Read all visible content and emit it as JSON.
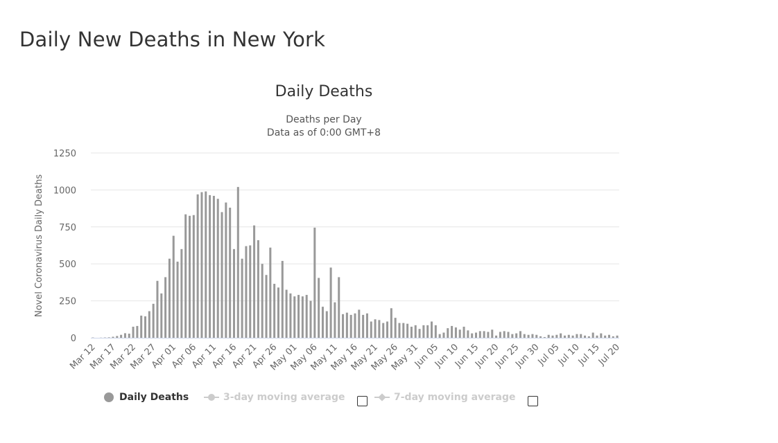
{
  "page": {
    "title": "Daily New Deaths in New York"
  },
  "chart_data": {
    "type": "bar",
    "title": "Daily Deaths",
    "subtitle_lines": [
      "Deaths per Day",
      "Data as of 0:00 GMT+8"
    ],
    "ylabel": "Novel Coronavirus Daily Deaths",
    "xlabel": "",
    "ylim": [
      0,
      1250
    ],
    "yticks": [
      0,
      250,
      500,
      750,
      1000,
      1250
    ],
    "grid": true,
    "legend_position": "bottom-left",
    "colors": {
      "bar": "#999999",
      "grid": "#e6e6e6",
      "axis": "#ccd6eb",
      "tick_text": "#666666",
      "legend_inactive": "#cccccc"
    },
    "categories": [
      "Mar 12",
      "Mar 13",
      "Mar 14",
      "Mar 15",
      "Mar 16",
      "Mar 17",
      "Mar 18",
      "Mar 19",
      "Mar 20",
      "Mar 21",
      "Mar 22",
      "Mar 23",
      "Mar 24",
      "Mar 25",
      "Mar 26",
      "Mar 27",
      "Mar 28",
      "Mar 29",
      "Mar 30",
      "Mar 31",
      "Apr 01",
      "Apr 02",
      "Apr 03",
      "Apr 04",
      "Apr 05",
      "Apr 06",
      "Apr 07",
      "Apr 08",
      "Apr 09",
      "Apr 10",
      "Apr 11",
      "Apr 12",
      "Apr 13",
      "Apr 14",
      "Apr 15",
      "Apr 16",
      "Apr 17",
      "Apr 18",
      "Apr 19",
      "Apr 20",
      "Apr 21",
      "Apr 22",
      "Apr 23",
      "Apr 24",
      "Apr 25",
      "Apr 26",
      "Apr 27",
      "Apr 28",
      "Apr 29",
      "Apr 30",
      "May 01",
      "May 02",
      "May 03",
      "May 04",
      "May 05",
      "May 06",
      "May 07",
      "May 08",
      "May 09",
      "May 10",
      "May 11",
      "May 12",
      "May 13",
      "May 14",
      "May 15",
      "May 16",
      "May 17",
      "May 18",
      "May 19",
      "May 20",
      "May 21",
      "May 22",
      "May 23",
      "May 24",
      "May 25",
      "May 26",
      "May 27",
      "May 28",
      "May 29",
      "May 30",
      "May 31",
      "Jun 01",
      "Jun 02",
      "Jun 03",
      "Jun 04",
      "Jun 05",
      "Jun 06",
      "Jun 07",
      "Jun 08",
      "Jun 09",
      "Jun 10",
      "Jun 11",
      "Jun 12",
      "Jun 13",
      "Jun 14",
      "Jun 15",
      "Jun 16",
      "Jun 17",
      "Jun 18",
      "Jun 19",
      "Jun 20",
      "Jun 21",
      "Jun 22",
      "Jun 23",
      "Jun 24",
      "Jun 25",
      "Jun 26",
      "Jun 27",
      "Jun 28",
      "Jun 29",
      "Jun 30",
      "Jul 01",
      "Jul 02",
      "Jul 03",
      "Jul 04",
      "Jul 05",
      "Jul 06",
      "Jul 07",
      "Jul 08",
      "Jul 09",
      "Jul 10",
      "Jul 11",
      "Jul 12",
      "Jul 13",
      "Jul 14",
      "Jul 15",
      "Jul 16",
      "Jul 17",
      "Jul 18",
      "Jul 19",
      "Jul 20"
    ],
    "xtick_labels": [
      "Mar 12",
      "Mar 17",
      "Mar 22",
      "Mar 27",
      "Apr 01",
      "Apr 06",
      "Apr 11",
      "Apr 16",
      "Apr 21",
      "Apr 26",
      "May 01",
      "May 06",
      "May 11",
      "May 16",
      "May 21",
      "May 26",
      "May 31",
      "Jun 05",
      "Jun 10",
      "Jun 15",
      "Jun 20",
      "Jun 25",
      "Jun 30",
      "Jul 05",
      "Jul 10",
      "Jul 15",
      "Jul 20"
    ],
    "series": [
      {
        "name": "Daily Deaths",
        "values": [
          2,
          0,
          1,
          2,
          3,
          7,
          12,
          20,
          31,
          28,
          75,
          80,
          150,
          145,
          180,
          230,
          385,
          300,
          410,
          535,
          690,
          515,
          600,
          835,
          825,
          830,
          970,
          985,
          990,
          965,
          960,
          940,
          850,
          915,
          880,
          600,
          1020,
          535,
          620,
          625,
          760,
          660,
          500,
          425,
          610,
          365,
          340,
          520,
          325,
          300,
          280,
          290,
          280,
          290,
          250,
          745,
          405,
          210,
          180,
          475,
          240,
          410,
          160,
          170,
          155,
          165,
          190,
          155,
          165,
          110,
          125,
          120,
          100,
          110,
          200,
          135,
          100,
          100,
          95,
          75,
          85,
          60,
          85,
          85,
          110,
          85,
          25,
          35,
          65,
          80,
          70,
          55,
          75,
          50,
          30,
          35,
          45,
          45,
          40,
          55,
          15,
          40,
          45,
          40,
          25,
          30,
          45,
          25,
          20,
          25,
          20,
          10,
          5,
          20,
          15,
          20,
          30,
          15,
          20,
          15,
          25,
          25,
          15,
          10,
          35,
          15,
          30,
          15,
          20,
          10,
          15
        ]
      }
    ],
    "legend": [
      {
        "label": "Daily Deaths",
        "active": true
      },
      {
        "label": "3-day moving average",
        "active": false
      },
      {
        "label": "7-day moving average",
        "active": false
      }
    ]
  }
}
